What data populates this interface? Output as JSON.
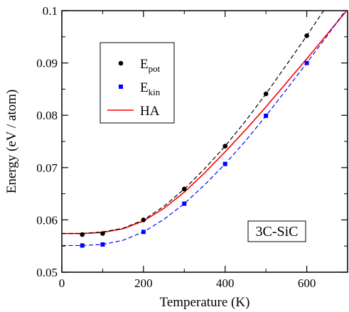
{
  "chart_data": {
    "type": "line",
    "xlabel": "Temperature  (K)",
    "ylabel": "Energy  (eV / atom)",
    "xlim": [
      0,
      700
    ],
    "ylim": [
      0.05,
      0.1
    ],
    "x_ticks": [
      "0",
      "200",
      "400",
      "600"
    ],
    "y_ticks": [
      "0.05",
      "0.06",
      "0.07",
      "0.08",
      "0.09",
      "0.1"
    ],
    "grid": false,
    "legend_position": "top-left",
    "annotation": "3C-SiC",
    "series": [
      {
        "name": "E",
        "name_sub": "pot",
        "style": "markers-circle",
        "color": "#000000",
        "x": [
          50,
          100,
          200,
          300,
          400,
          500,
          600
        ],
        "y": [
          0.0572,
          0.0574,
          0.06,
          0.0659,
          0.0741,
          0.0841,
          0.0952
        ]
      },
      {
        "name": "E",
        "name_sub": "kin",
        "style": "markers-square",
        "color": "#0000ff",
        "x": [
          50,
          100,
          200,
          300,
          400,
          500,
          600
        ],
        "y": [
          0.0551,
          0.0553,
          0.0577,
          0.0631,
          0.0707,
          0.0799,
          0.09
        ]
      },
      {
        "name": "HA",
        "style": "line-solid",
        "color": "#ff0000",
        "x": [
          0,
          50,
          100,
          150,
          200,
          250,
          300,
          350,
          400,
          450,
          500,
          550,
          600,
          650,
          700
        ],
        "y": [
          0.0574,
          0.0574,
          0.0576,
          0.0583,
          0.0598,
          0.0622,
          0.0653,
          0.069,
          0.073,
          0.0772,
          0.0816,
          0.0862,
          0.0908,
          0.0955,
          0.1002
        ]
      },
      {
        "style": "line-dashed",
        "color": "#000000",
        "x": [
          0,
          50,
          100,
          150,
          200,
          250,
          300,
          350,
          400,
          450,
          500,
          550,
          600,
          650,
          700
        ],
        "y": [
          0.0574,
          0.0574,
          0.0577,
          0.0584,
          0.06,
          0.0626,
          0.0659,
          0.0698,
          0.0741,
          0.0789,
          0.0841,
          0.0896,
          0.0952,
          0.101,
          0.1068
        ]
      },
      {
        "style": "line-dashed",
        "color": "#0000ff",
        "x": [
          0,
          50,
          100,
          150,
          200,
          250,
          300,
          350,
          400,
          450,
          500,
          550,
          600,
          650,
          700
        ],
        "y": [
          0.0551,
          0.0551,
          0.0553,
          0.0561,
          0.0577,
          0.0601,
          0.0631,
          0.0667,
          0.0707,
          0.0751,
          0.0799,
          0.0849,
          0.09,
          0.0952,
          0.1006
        ]
      }
    ]
  }
}
